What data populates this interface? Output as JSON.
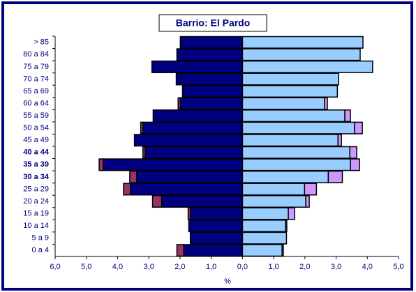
{
  "chart_data": {
    "type": "bar",
    "orientation": "horizontal",
    "stacked": true,
    "title": "Barrio: El Pardo",
    "xlabel": "%",
    "categories": [
      "> 85",
      "80 a 84",
      "75 a 79",
      "70 a 74",
      "65 a 69",
      "60 a 64",
      "55 a 59",
      "50 a 54",
      "45 a 49",
      "40 a 44",
      "35 a 39",
      "30 a 34",
      "25 a 29",
      "20 a 24",
      "15 a 19",
      "10 a 14",
      "5 a 9",
      "0 a 4"
    ],
    "bold_categories": [
      "40 a 44",
      "35 a 39",
      "30 a 34"
    ],
    "series": [
      {
        "color": "#000080",
        "values": [
          -1.99,
          -2.1,
          -2.9,
          -2.12,
          -1.92,
          -1.99,
          -2.86,
          -3.19,
          -3.46,
          -3.12,
          -4.46,
          -3.39,
          -3.59,
          -2.59,
          -1.67,
          -1.72,
          -1.67,
          -1.88
        ]
      },
      {
        "color": "#993366",
        "values": [
          0,
          0,
          0,
          0,
          0,
          -0.07,
          0,
          -0.07,
          0,
          -0.07,
          -0.13,
          -0.22,
          -0.22,
          -0.29,
          -0.07,
          0,
          0,
          -0.22
        ]
      },
      {
        "color": "#99ccff",
        "values": [
          3.86,
          3.77,
          4.17,
          3.08,
          3.04,
          2.63,
          3.28,
          3.59,
          3.06,
          3.44,
          3.46,
          2.75,
          1.99,
          2.03,
          1.47,
          1.38,
          1.41,
          1.27
        ]
      },
      {
        "color": "#cc99ff",
        "values": [
          0,
          0,
          0,
          0,
          0,
          0.09,
          0.18,
          0.25,
          0.11,
          0.22,
          0.29,
          0.45,
          0.38,
          0.11,
          0.2,
          0.04,
          0,
          0.04
        ]
      }
    ],
    "xlim": [
      -6,
      5
    ],
    "xticks": [
      {
        "value": -6,
        "label": "6,0"
      },
      {
        "value": -5,
        "label": "5,0"
      },
      {
        "value": -4,
        "label": "4,0"
      },
      {
        "value": -3,
        "label": "3,0"
      },
      {
        "value": -2,
        "label": "2,0"
      },
      {
        "value": -1,
        "label": "1,0"
      },
      {
        "value": 0,
        "label": "0,0"
      },
      {
        "value": 1,
        "label": "1,0"
      },
      {
        "value": 2,
        "label": "2,0"
      },
      {
        "value": 3,
        "label": "3,0"
      },
      {
        "value": 4,
        "label": "4,0"
      },
      {
        "value": 5,
        "label": "5,0"
      }
    ]
  }
}
